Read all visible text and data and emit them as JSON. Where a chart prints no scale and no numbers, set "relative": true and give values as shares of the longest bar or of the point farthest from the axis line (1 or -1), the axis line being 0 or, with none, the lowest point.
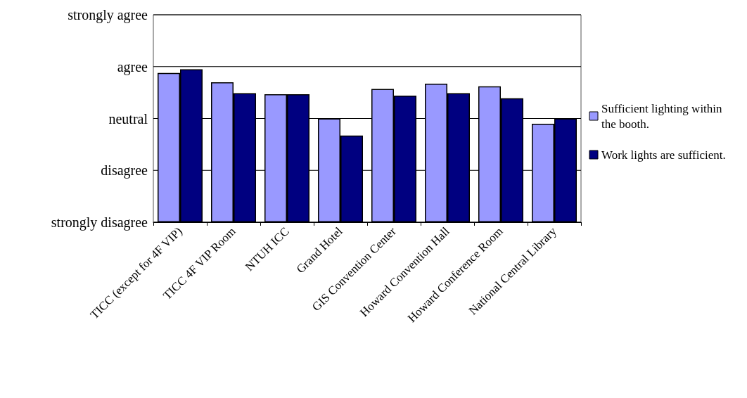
{
  "chart_data": {
    "type": "bar",
    "relative": true,
    "categories": [
      "TICC (except for 4F VIP)",
      "TICC 4F VIP Room",
      "NTUH ICC",
      "Grand Hotel",
      "GIS Convention Center",
      "Howard Convention Hall",
      "Howard Conference Room",
      "National Central Library"
    ],
    "series": [
      {
        "name": "Sufficient lighting within the booth.",
        "color": "#9999ff",
        "values": [
          0.976,
          0.915,
          0.837,
          0.678,
          0.871,
          0.905,
          0.888,
          0.644
        ]
      },
      {
        "name": "Work lights are sufficient.",
        "color": "#000080",
        "values": [
          1,
          0.844,
          0.837,
          0.566,
          0.827,
          0.844,
          0.81,
          0.678
        ]
      }
    ],
    "ref_lines": [
      {
        "axis": "y",
        "value": 1.356,
        "label": "strongly agree",
        "color": "#000000"
      },
      {
        "axis": "y",
        "value": 1.017,
        "label": "agree",
        "color": "#000000"
      },
      {
        "axis": "y",
        "value": 0.678,
        "label": "neutral",
        "color": "#000000"
      },
      {
        "axis": "y",
        "value": 0.339,
        "label": "disagree",
        "color": "#000000"
      },
      {
        "axis": "y",
        "value": 0,
        "label": "strongly disagree",
        "color": "#000000"
      }
    ],
    "legend": "right"
  }
}
